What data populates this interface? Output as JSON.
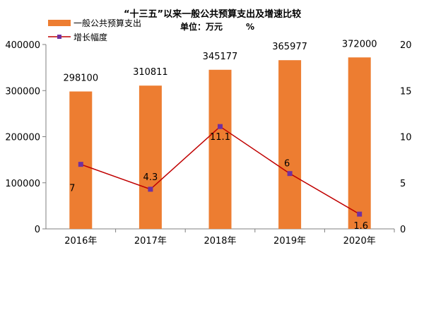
{
  "chart_data": {
    "type": "bar",
    "title": "“十三五”以来一般公共预算支出及增速比较",
    "unit_label": "单位：万元",
    "unit_pct": "%",
    "categories": [
      "2016年",
      "2017年",
      "2018年",
      "2019年",
      "2020年"
    ],
    "series": [
      {
        "name": "一般公共预算支出",
        "type": "bar",
        "axis": "left",
        "color": "#ED7D31",
        "values": [
          298100,
          310811,
          345177,
          365977,
          372000
        ]
      },
      {
        "name": "增长幅度",
        "type": "line",
        "axis": "right",
        "color": "#C00000",
        "marker_color": "#7030A0",
        "values": [
          7,
          4.3,
          11.1,
          6,
          1.6
        ]
      }
    ],
    "y_left": {
      "min": 0,
      "max": 400000,
      "ticks": [
        "0",
        "100000",
        "200000",
        "300000",
        "400000"
      ]
    },
    "y_right": {
      "min": 0,
      "max": 20,
      "ticks": [
        "0",
        "5",
        "10",
        "15",
        "20"
      ]
    },
    "legend_position": "top-left",
    "grid": false
  }
}
